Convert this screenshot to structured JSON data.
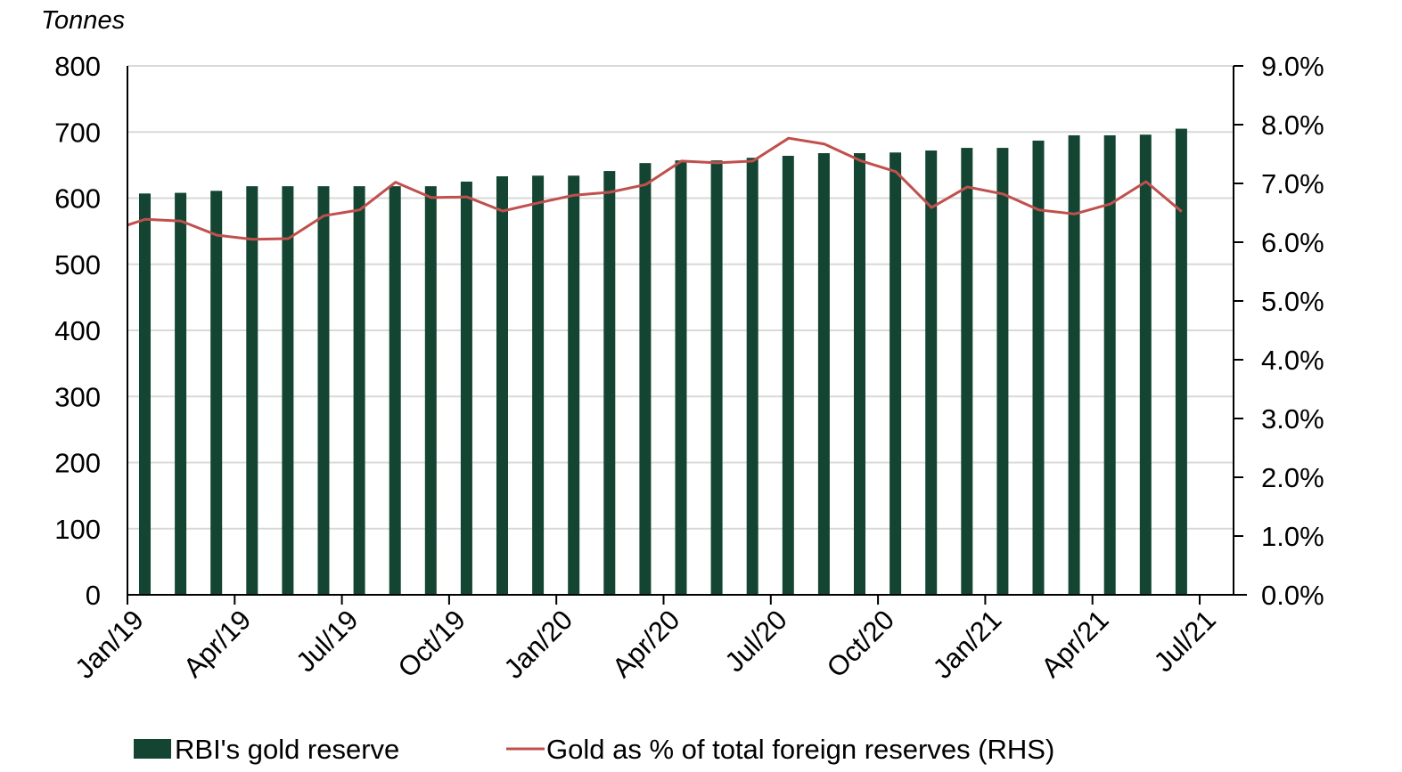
{
  "chart_data": {
    "type": "bar",
    "title": "",
    "ylabel": "Tonnes",
    "y2label": "",
    "xlabel": "",
    "ylim": [
      0,
      800
    ],
    "y2lim": [
      0,
      9.0
    ],
    "yticks": [
      "0",
      "100",
      "200",
      "300",
      "400",
      "500",
      "600",
      "700",
      "800"
    ],
    "y2ticks": [
      "0.0%",
      "1.0%",
      "2.0%",
      "3.0%",
      "4.0%",
      "5.0%",
      "6.0%",
      "7.0%",
      "8.0%",
      "9.0%"
    ],
    "xticks": [
      "Jan/19",
      "Apr/19",
      "Jul/19",
      "Oct/19",
      "Jan/20",
      "Apr/20",
      "Jul/20",
      "Oct/20",
      "Jan/21",
      "Apr/21",
      "Jul/21"
    ],
    "grid": true,
    "legend_position": "bottom",
    "colors": {
      "bar": "#134532",
      "line": "#C0504D",
      "grid": "#D9D9D9"
    },
    "categories": [
      "Jan/19",
      "Feb/19",
      "Mar/19",
      "Apr/19",
      "May/19",
      "Jun/19",
      "Jul/19",
      "Aug/19",
      "Sep/19",
      "Oct/19",
      "Nov/19",
      "Dec/19",
      "Jan/20",
      "Feb/20",
      "Mar/20",
      "Apr/20",
      "May/20",
      "Jun/20",
      "Jul/20",
      "Aug/20",
      "Sep/20",
      "Oct/20",
      "Nov/20",
      "Dec/20",
      "Jan/21",
      "Feb/21",
      "Mar/21",
      "Apr/21",
      "May/21",
      "Jun/21"
    ],
    "series": [
      {
        "name": "RBI's gold reserve",
        "type": "bar",
        "axis": "left",
        "values": [
          607,
          608,
          611,
          618,
          618,
          618,
          618,
          618,
          618,
          625,
          633,
          634,
          634,
          641,
          653,
          657,
          657,
          661,
          664,
          668,
          668,
          669,
          672,
          676,
          676,
          687,
          695,
          695,
          696,
          705
        ]
      },
      {
        "name": "Gold as % of total foreign reserves (RHS)",
        "type": "line",
        "axis": "right",
        "start_value": 6.29,
        "values": [
          6.39,
          6.36,
          6.12,
          6.05,
          6.06,
          6.45,
          6.55,
          7.02,
          6.76,
          6.77,
          6.53,
          6.67,
          6.8,
          6.85,
          6.98,
          7.38,
          7.35,
          7.38,
          7.77,
          7.67,
          7.39,
          7.2,
          6.59,
          6.94,
          6.82,
          6.55,
          6.48,
          6.65,
          7.03,
          6.52
        ]
      }
    ]
  }
}
